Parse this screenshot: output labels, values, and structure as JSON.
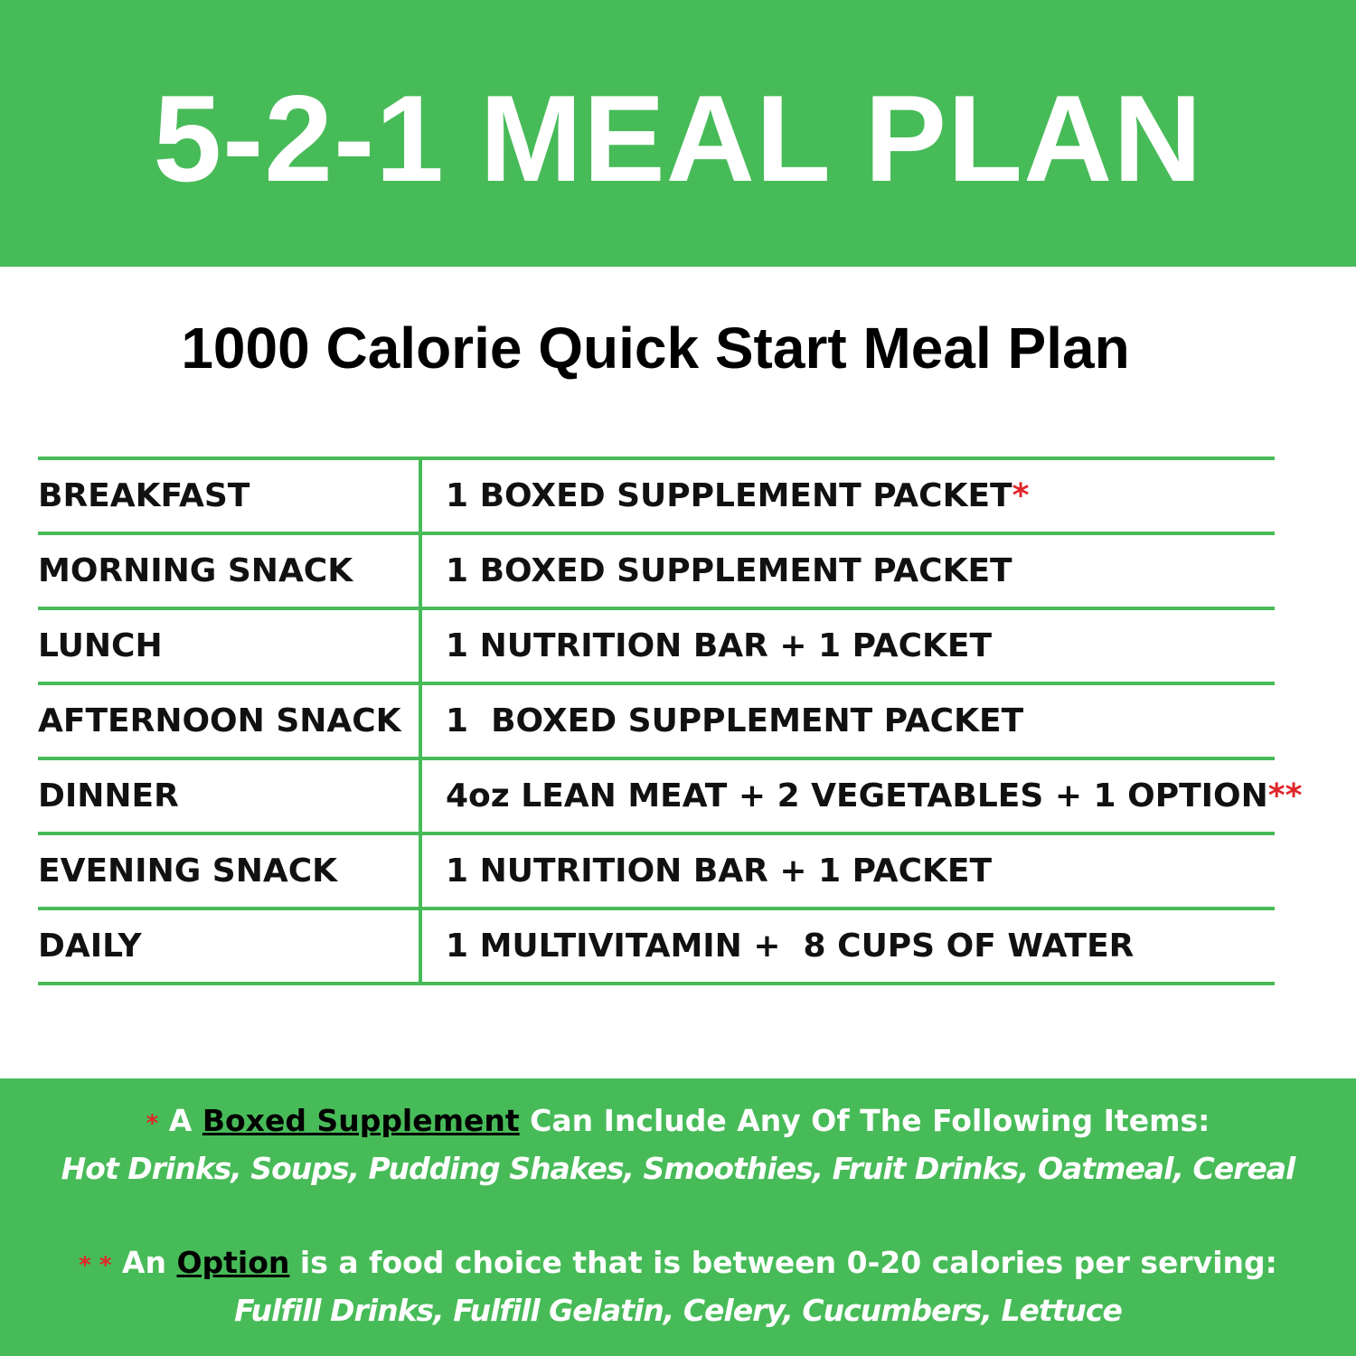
{
  "header": {
    "title": "5-2-1 MEAL PLAN"
  },
  "subtitle": "1000 Calorie Quick Start Meal Plan",
  "table": {
    "rows": [
      {
        "meal": "BREAKFAST",
        "item": "1 BOXED SUPPLEMENT PACKET",
        "mark": "*"
      },
      {
        "meal": "MORNING SNACK",
        "item": "1 BOXED SUPPLEMENT PACKET"
      },
      {
        "meal": "LUNCH",
        "item": "1 NUTRITION BAR + 1 PACKET"
      },
      {
        "meal": "AFTERNOON SNACK",
        "item": "1  BOXED SUPPLEMENT PACKET"
      },
      {
        "meal": "DINNER",
        "item": "4oz LEAN MEAT + 2 VEGETABLES + 1 OPTION",
        "mark": "**"
      },
      {
        "meal": "EVENING SNACK",
        "item": "1 NUTRITION BAR + 1 PACKET"
      },
      {
        "meal": "DAILY",
        "item": "1 MULTIVITAMIN +  8 CUPS OF WATER"
      }
    ]
  },
  "notes": [
    {
      "mark": "*",
      "prefix": "A",
      "term": "Boxed Supplement",
      "text": "Can Include Any Of The Following Items:",
      "examples": "Hot Drinks, Soups, Pudding Shakes, Smoothies, Fruit Drinks, Oatmeal, Cereal"
    },
    {
      "mark": "* *",
      "prefix": "An",
      "term": "Option",
      "text": "is a food choice that is between 0-20 calories per serving:",
      "examples": "Fulfill Drinks, Fulfill Gelatin, Celery, Cucumbers, Lettuce"
    }
  ]
}
